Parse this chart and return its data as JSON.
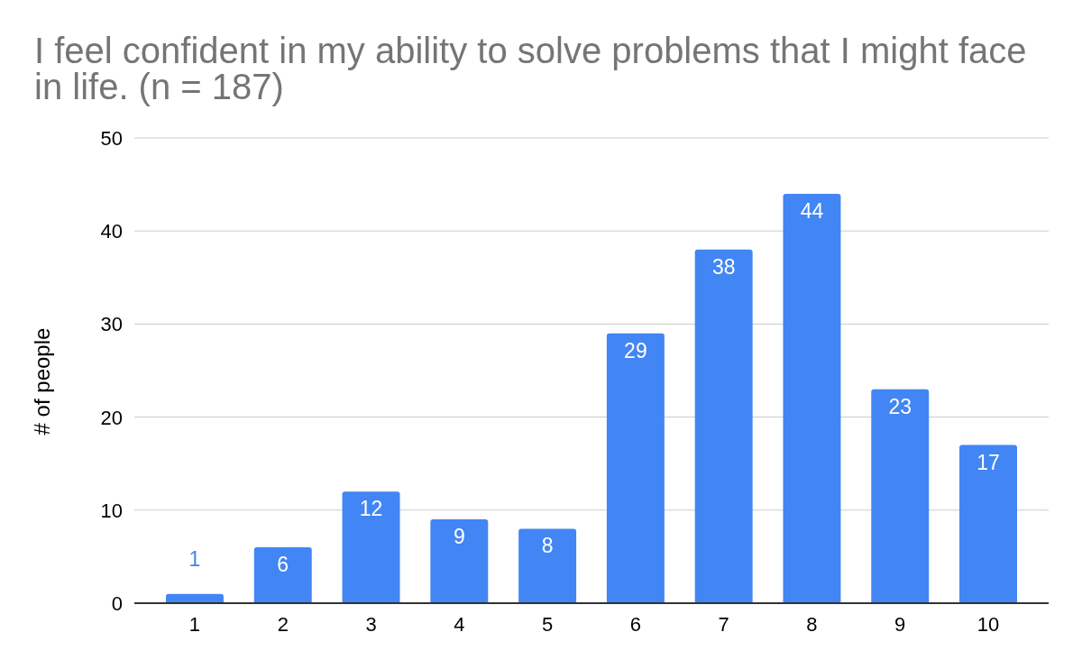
{
  "chart_data": {
    "type": "bar",
    "title": "I feel confident in my ability to solve problems that I might face\nin life. (n = 187)",
    "ylabel": "# of people",
    "categories": [
      "1",
      "2",
      "3",
      "4",
      "5",
      "6",
      "7",
      "8",
      "9",
      "10"
    ],
    "values": [
      1,
      6,
      12,
      9,
      8,
      29,
      38,
      44,
      23,
      17
    ],
    "color": "#4285f4",
    "ylim": [
      0,
      50
    ],
    "yticks": [
      0,
      10,
      20,
      30,
      40,
      50
    ],
    "grid": "y",
    "data_labels": true
  }
}
